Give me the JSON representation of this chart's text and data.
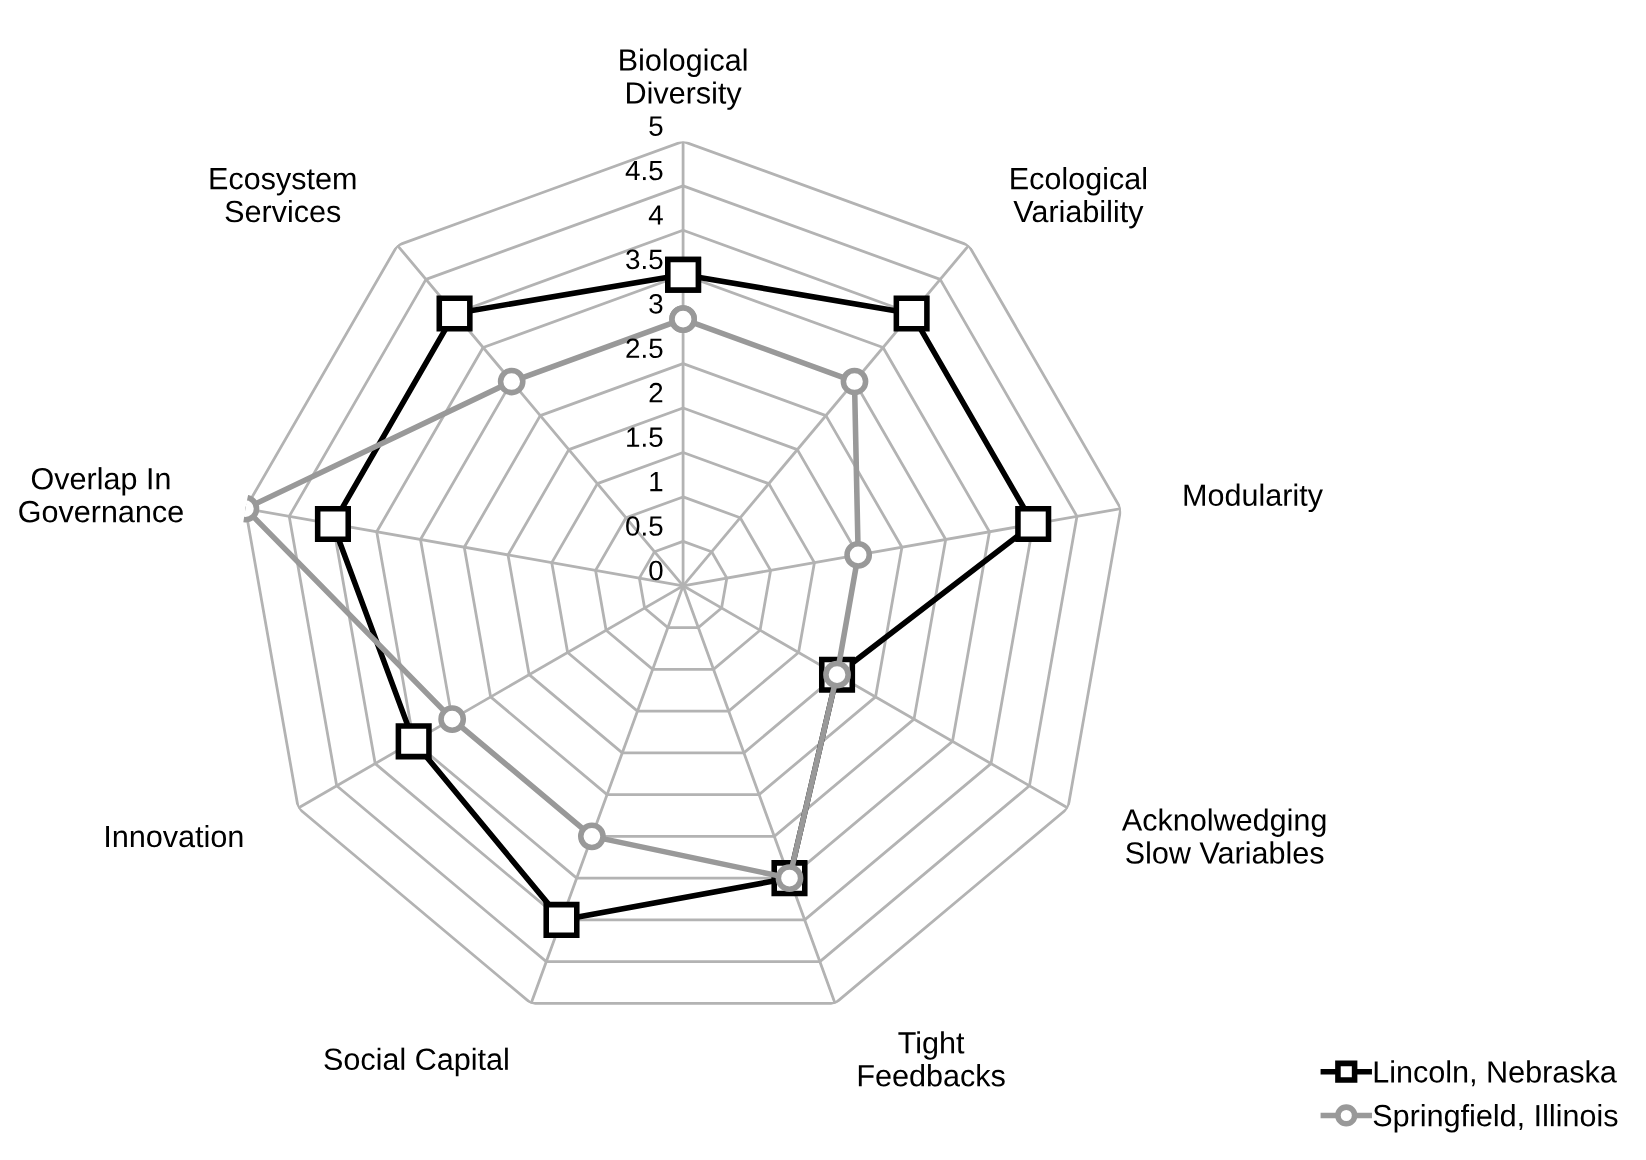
{
  "chart_data": {
    "type": "radar",
    "categories": [
      "Biological Diversity",
      "Ecological Variability",
      "Modularity",
      "Acknolwedging Slow Variables",
      "Tight Feedbacks",
      "Social Capital",
      "Innovation",
      "Overlap In Governance",
      "Ecosystem Services"
    ],
    "series": [
      {
        "name": "Lincoln, Nebraska",
        "color": "#000000",
        "marker": "square",
        "values": [
          3.5,
          4,
          4,
          2,
          3.5,
          4,
          3.5,
          4,
          4
        ]
      },
      {
        "name": "Springfield, Illinois",
        "color": "#999999",
        "marker": "circle",
        "values": [
          3,
          3,
          2,
          2,
          3.5,
          3,
          3,
          5,
          3
        ]
      }
    ],
    "ylim": [
      0,
      5
    ],
    "yticks": [
      0,
      0.5,
      1,
      1.5,
      2,
      2.5,
      3,
      3.5,
      4,
      4.5,
      5
    ],
    "grid": true,
    "legend": "bottom right"
  }
}
